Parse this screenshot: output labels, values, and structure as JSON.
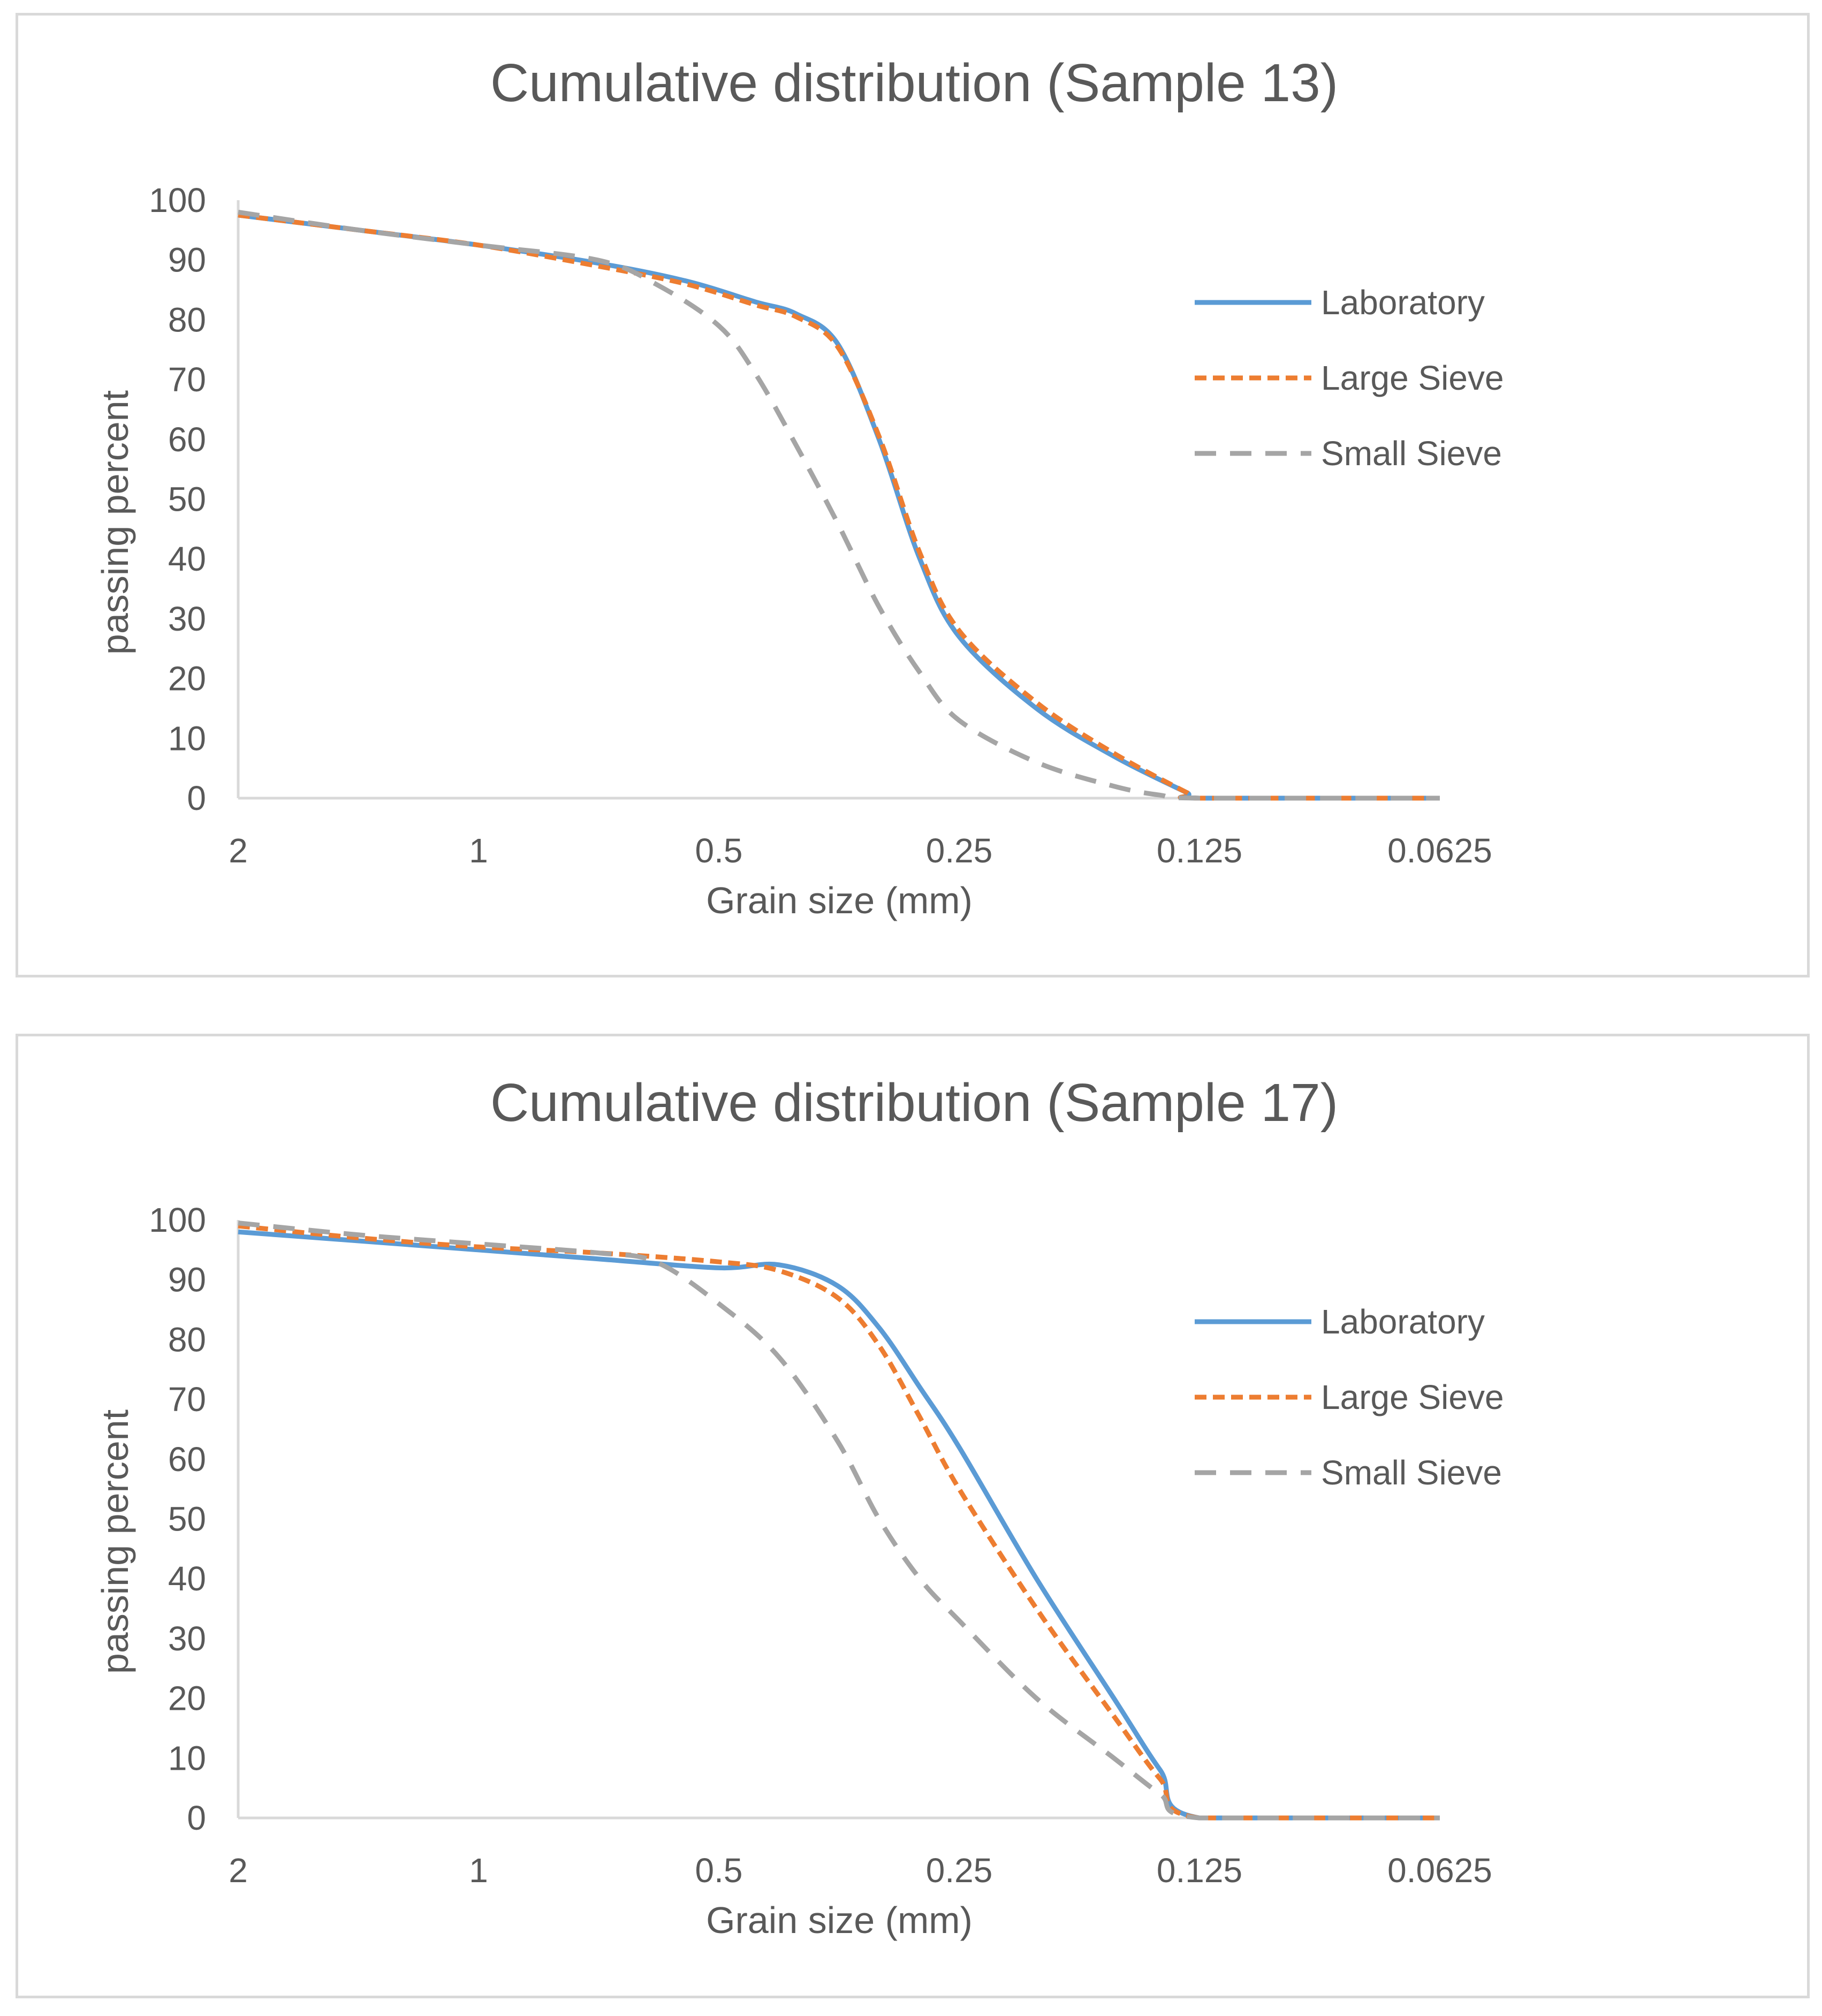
{
  "chart_data": [
    {
      "type": "line",
      "title": "Cumulative distribution (Sample 13)",
      "xlabel": "Grain size (mm)",
      "ylabel": "passing percent",
      "x_scale": "log2-reversed",
      "x_ticks": [
        "2",
        "1",
        "0.5",
        "0.25",
        "0.125",
        "0.0625"
      ],
      "y_ticks": [
        "0",
        "10",
        "20",
        "30",
        "40",
        "50",
        "60",
        "70",
        "80",
        "90",
        "100"
      ],
      "ylim": [
        0,
        100
      ],
      "xlim": [
        2,
        0.0625
      ],
      "grid": false,
      "legend_position": "right",
      "series": [
        {
          "name": "Laboratory",
          "color": "#5b9bd5",
          "dash": "solid",
          "points": [
            [
              2,
              97.5
            ],
            [
              1.41,
              95
            ],
            [
              1,
              92.5
            ],
            [
              0.71,
              89.5
            ],
            [
              0.55,
              86.5
            ],
            [
              0.45,
              83
            ],
            [
              0.4,
              81
            ],
            [
              0.355,
              76
            ],
            [
              0.315,
              60
            ],
            [
              0.28,
              40
            ],
            [
              0.25,
              27
            ],
            [
              0.2,
              15
            ],
            [
              0.16,
              7
            ],
            [
              0.13,
              1
            ],
            [
              0.125,
              0
            ],
            [
              0.0625,
              0
            ]
          ]
        },
        {
          "name": "Large Sieve",
          "color": "#ed7d31",
          "dash": "short-dash",
          "points": [
            [
              2,
              97.5
            ],
            [
              1.41,
              95
            ],
            [
              1,
              92.5
            ],
            [
              0.71,
              89
            ],
            [
              0.55,
              86
            ],
            [
              0.45,
              82.5
            ],
            [
              0.4,
              80.5
            ],
            [
              0.355,
              75.5
            ],
            [
              0.315,
              60.5
            ],
            [
              0.28,
              41
            ],
            [
              0.25,
              28
            ],
            [
              0.2,
              16
            ],
            [
              0.16,
              7.5
            ],
            [
              0.13,
              1
            ],
            [
              0.125,
              0
            ],
            [
              0.0625,
              0
            ]
          ]
        },
        {
          "name": "Small Sieve",
          "color": "#a5a5a5",
          "dash": "long-dash",
          "points": [
            [
              2,
              98
            ],
            [
              1.41,
              95
            ],
            [
              1,
              92.5
            ],
            [
              0.71,
              90
            ],
            [
              0.6,
              86
            ],
            [
              0.5,
              79
            ],
            [
              0.45,
              71
            ],
            [
              0.4,
              59
            ],
            [
              0.355,
              46
            ],
            [
              0.315,
              32
            ],
            [
              0.28,
              21
            ],
            [
              0.25,
              13
            ],
            [
              0.2,
              6
            ],
            [
              0.16,
              2
            ],
            [
              0.14,
              0.5
            ],
            [
              0.125,
              0
            ],
            [
              0.0625,
              0
            ]
          ]
        }
      ]
    },
    {
      "type": "line",
      "title": "Cumulative distribution (Sample 17)",
      "xlabel": "Grain size (mm)",
      "ylabel": "passing percent",
      "x_scale": "log2-reversed",
      "x_ticks": [
        "2",
        "1",
        "0.5",
        "0.25",
        "0.125",
        "0.0625"
      ],
      "y_ticks": [
        "0",
        "10",
        "20",
        "30",
        "40",
        "50",
        "60",
        "70",
        "80",
        "90",
        "100"
      ],
      "ylim": [
        0,
        100
      ],
      "xlim": [
        2,
        0.0625
      ],
      "grid": false,
      "legend_position": "right",
      "series": [
        {
          "name": "Laboratory",
          "color": "#5b9bd5",
          "dash": "solid",
          "points": [
            [
              2,
              98
            ],
            [
              1.41,
              96.5
            ],
            [
              1,
              95
            ],
            [
              0.71,
              93.5
            ],
            [
              0.5,
              92
            ],
            [
              0.42,
              92.5
            ],
            [
              0.355,
              89
            ],
            [
              0.315,
              82
            ],
            [
              0.28,
              72
            ],
            [
              0.25,
              62
            ],
            [
              0.2,
              40
            ],
            [
              0.16,
              20
            ],
            [
              0.14,
              8
            ],
            [
              0.125,
              0
            ],
            [
              0.0625,
              0
            ]
          ]
        },
        {
          "name": "Large Sieve",
          "color": "#ed7d31",
          "dash": "short-dash",
          "points": [
            [
              2,
              99
            ],
            [
              1.41,
              97
            ],
            [
              1,
              95.5
            ],
            [
              0.71,
              94.5
            ],
            [
              0.5,
              93
            ],
            [
              0.42,
              91.5
            ],
            [
              0.355,
              87
            ],
            [
              0.315,
              79
            ],
            [
              0.28,
              67
            ],
            [
              0.25,
              55
            ],
            [
              0.2,
              35
            ],
            [
              0.16,
              17
            ],
            [
              0.14,
              6.5
            ],
            [
              0.125,
              0
            ],
            [
              0.0625,
              0
            ]
          ]
        },
        {
          "name": "Small Sieve",
          "color": "#a5a5a5",
          "dash": "long-dash",
          "points": [
            [
              2,
              99.5
            ],
            [
              1.41,
              97.5
            ],
            [
              1,
              96
            ],
            [
              0.71,
              94.5
            ],
            [
              0.6,
              93
            ],
            [
              0.5,
              86
            ],
            [
              0.42,
              77
            ],
            [
              0.355,
              63
            ],
            [
              0.315,
              50
            ],
            [
              0.28,
              40
            ],
            [
              0.25,
              33
            ],
            [
              0.2,
              20
            ],
            [
              0.16,
              10
            ],
            [
              0.14,
              4
            ],
            [
              0.125,
              0
            ],
            [
              0.0625,
              0
            ]
          ]
        }
      ]
    }
  ]
}
